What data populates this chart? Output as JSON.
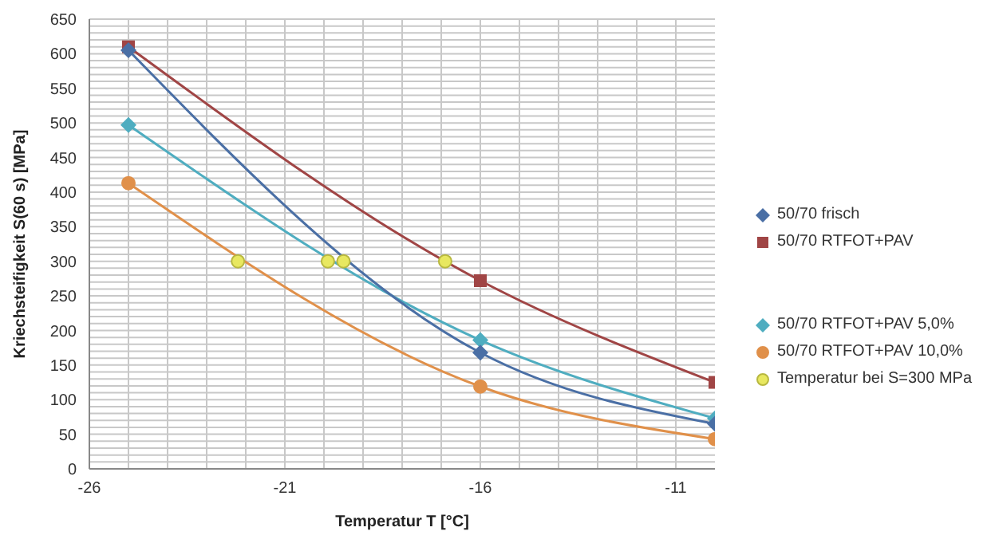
{
  "chart_data": {
    "type": "line",
    "xlabel": "Temperatur T [°C]",
    "ylabel": "Kriechsteifigkeit S(60 s) [MPa]",
    "xlim": [
      -26,
      -10
    ],
    "xticks": [
      -26,
      {
        "value": -25,
        "label": null
      },
      {
        "value": -24,
        "label": null
      },
      {
        "value": -23,
        "label": null
      },
      {
        "value": -22,
        "label": null
      },
      -21,
      {
        "value": -20,
        "label": null
      },
      {
        "value": -19,
        "label": null
      },
      {
        "value": -18,
        "label": null
      },
      {
        "value": -17,
        "label": null
      },
      -16,
      {
        "value": -15,
        "label": null
      },
      {
        "value": -14,
        "label": null
      },
      {
        "value": -13,
        "label": null
      },
      {
        "value": -12,
        "label": null
      },
      -11
    ],
    "ylim": [
      0,
      650
    ],
    "yticks": [
      0,
      {
        "value": 10,
        "label": null
      },
      {
        "value": 20,
        "label": null
      },
      {
        "value": 30,
        "label": null
      },
      {
        "value": 40,
        "label": null
      },
      50,
      {
        "value": 60,
        "label": null
      },
      {
        "value": 70,
        "label": null
      },
      {
        "value": 80,
        "label": null
      },
      {
        "value": 90,
        "label": null
      },
      100,
      {
        "value": 110,
        "label": null
      },
      {
        "value": 120,
        "label": null
      },
      {
        "value": 130,
        "label": null
      },
      {
        "value": 140,
        "label": null
      },
      150,
      {
        "value": 160,
        "label": null
      },
      {
        "value": 170,
        "label": null
      },
      {
        "value": 180,
        "label": null
      },
      {
        "value": 190,
        "label": null
      },
      200,
      {
        "value": 210,
        "label": null
      },
      {
        "value": 220,
        "label": null
      },
      {
        "value": 230,
        "label": null
      },
      {
        "value": 240,
        "label": null
      },
      250,
      {
        "value": 260,
        "label": null
      },
      {
        "value": 270,
        "label": null
      },
      {
        "value": 280,
        "label": null
      },
      {
        "value": 290,
        "label": null
      },
      300,
      {
        "value": 310,
        "label": null
      },
      {
        "value": 320,
        "label": null
      },
      {
        "value": 330,
        "label": null
      },
      {
        "value": 340,
        "label": null
      },
      350,
      {
        "value": 360,
        "label": null
      },
      {
        "value": 370,
        "label": null
      },
      {
        "value": 380,
        "label": null
      },
      {
        "value": 390,
        "label": null
      },
      400,
      {
        "value": 410,
        "label": null
      },
      {
        "value": 420,
        "label": null
      },
      {
        "value": 430,
        "label": null
      },
      {
        "value": 440,
        "label": null
      },
      450,
      {
        "value": 460,
        "label": null
      },
      {
        "value": 470,
        "label": null
      },
      {
        "value": 480,
        "label": null
      },
      {
        "value": 490,
        "label": null
      },
      500,
      {
        "value": 510,
        "label": null
      },
      {
        "value": 520,
        "label": null
      },
      {
        "value": 530,
        "label": null
      },
      {
        "value": 540,
        "label": null
      },
      550,
      {
        "value": 560,
        "label": null
      },
      {
        "value": 570,
        "label": null
      },
      {
        "value": 580,
        "label": null
      },
      {
        "value": 590,
        "label": null
      },
      600,
      {
        "value": 610,
        "label": null
      },
      {
        "value": 620,
        "label": null
      },
      {
        "value": 630,
        "label": null
      },
      {
        "value": 640,
        "label": null
      },
      650
    ],
    "grid": true,
    "legend": "right",
    "series": [
      {
        "name": "50/70 frisch",
        "color": "#4a6fa5",
        "marker": "diamond",
        "x": [
          -25,
          -16,
          -10
        ],
        "values": [
          605,
          168,
          65
        ]
      },
      {
        "name": "50/70 RTFOT+PAV",
        "color": "#a04545",
        "marker": "square",
        "x": [
          -25,
          -16,
          -10
        ],
        "values": [
          610,
          272,
          125
        ]
      },
      {
        "name": "50/70 RTFOT+PAV 5,0%",
        "color": "#4fadc0",
        "marker": "diamond",
        "x": [
          -25,
          -16,
          -10
        ],
        "values": [
          497,
          186,
          73
        ]
      },
      {
        "name": "50/70 RTFOT+PAV 10,0%",
        "color": "#e0904a",
        "marker": "circle",
        "x": [
          -25,
          -16,
          -10
        ],
        "values": [
          413,
          119,
          43
        ]
      },
      {
        "name": "Temperatur bei S=300 MPa",
        "type": "scatter",
        "color": "#e8e860",
        "marker": "circle",
        "x": [
          -22.2,
          -19.9,
          -19.5,
          -16.9
        ],
        "values": [
          300,
          300,
          300,
          300
        ]
      }
    ]
  }
}
